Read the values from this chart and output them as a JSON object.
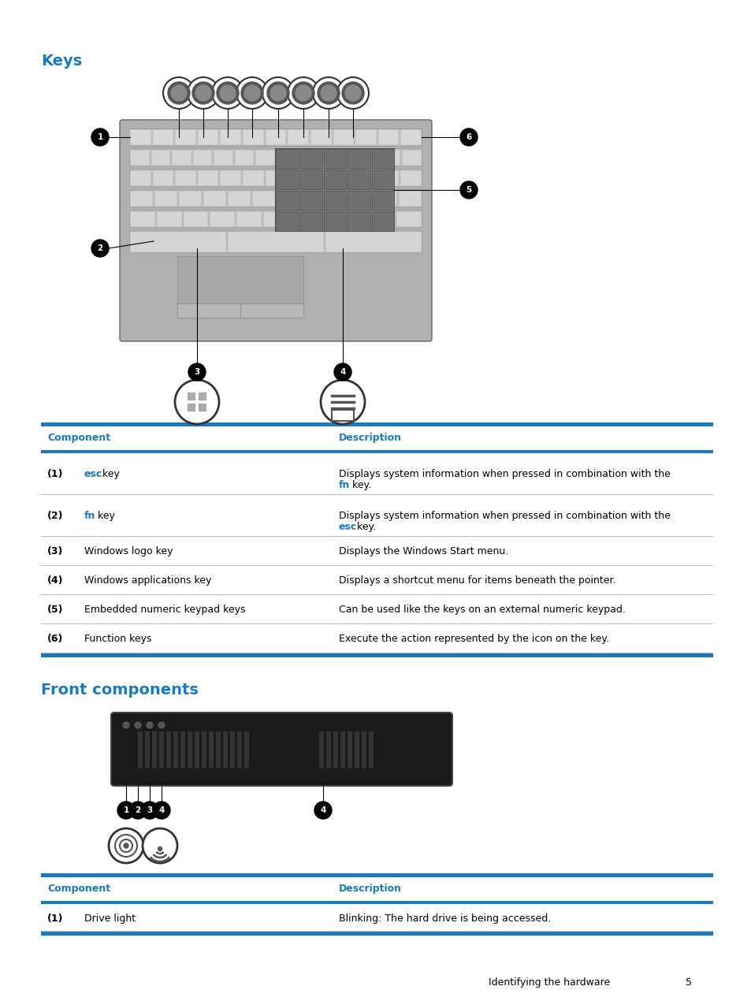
{
  "title_keys": "Keys",
  "title_front": "Front components",
  "blue_color": "#1a7abf",
  "body_color": "#000000",
  "bg_color": "#ffffff",
  "gray_line": "#bbbbbb",
  "table_header_row": [
    "Component",
    "Description"
  ],
  "keys_table": [
    {
      "num": "(1)",
      "comp_plain": " key",
      "comp_link": "esc",
      "desc_plain": "Displays system information when pressed in combination with the",
      "desc_link": "fn",
      "desc_end": " key."
    },
    {
      "num": "(2)",
      "comp_plain": " key",
      "comp_link": "fn",
      "desc_plain": "Displays system information when pressed in combination with the",
      "desc_link": "esc",
      "desc_end": " key."
    },
    {
      "num": "(3)",
      "comp_plain": "Windows logo key",
      "comp_link": "",
      "desc_plain": "Displays the Windows Start menu.",
      "desc_link": "",
      "desc_end": ""
    },
    {
      "num": "(4)",
      "comp_plain": "Windows applications key",
      "comp_link": "",
      "desc_plain": "Displays a shortcut menu for items beneath the pointer.",
      "desc_link": "",
      "desc_end": ""
    },
    {
      "num": "(5)",
      "comp_plain": "Embedded numeric keypad keys",
      "comp_link": "",
      "desc_plain": "Can be used like the keys on an external numeric keypad.",
      "desc_link": "",
      "desc_end": ""
    },
    {
      "num": "(6)",
      "comp_plain": "Function keys",
      "comp_link": "",
      "desc_plain": "Execute the action represented by the icon on the key.",
      "desc_link": "",
      "desc_end": ""
    }
  ],
  "front_table": [
    {
      "num": "(1)",
      "comp_plain": "Drive light",
      "comp_link": "",
      "desc_plain": "Blinking: The hard drive is being accessed.",
      "desc_link": "",
      "desc_end": ""
    }
  ],
  "footer_text": "Identifying the hardware",
  "footer_page": "5"
}
